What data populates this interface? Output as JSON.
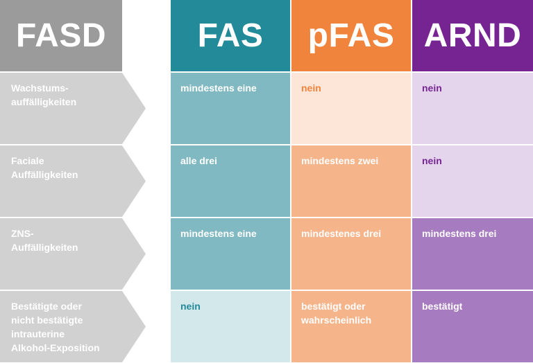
{
  "headers": {
    "fasd": {
      "label": "FASD",
      "color": "#9b9b9b"
    },
    "fas": {
      "label": "FAS",
      "color": "#228a98"
    },
    "pfas": {
      "label": "pFAS",
      "color": "#f0843c"
    },
    "arnd": {
      "label": "ARND",
      "color": "#772493"
    }
  },
  "rows": [
    {
      "label": "Wachstums-\nauffälligkeiten",
      "fas": {
        "text": "mindestens eine",
        "bg": "#80b9c1",
        "color": "#ffffff"
      },
      "pfas": {
        "text": "nein",
        "bg": "#fde5d7",
        "color": "#f0843c"
      },
      "arnd": {
        "text": "nein",
        "bg": "#e4d5ec",
        "color": "#772493"
      }
    },
    {
      "label": "Faciale\nAuffälligkeiten",
      "fas": {
        "text": "alle drei",
        "bg": "#80b9c1",
        "color": "#ffffff"
      },
      "pfas": {
        "text": "mindestens zwei",
        "bg": "#f5b48a",
        "color": "#ffffff"
      },
      "arnd": {
        "text": "nein",
        "bg": "#e4d5ec",
        "color": "#772493"
      }
    },
    {
      "label": "ZNS-\nAuffälligkeiten",
      "fas": {
        "text": "mindestens eine",
        "bg": "#80b9c1",
        "color": "#ffffff"
      },
      "pfas": {
        "text": "mindestenes drei",
        "bg": "#f5b48a",
        "color": "#ffffff"
      },
      "arnd": {
        "text": "mindestens drei",
        "bg": "#a77bbf",
        "color": "#ffffff"
      }
    },
    {
      "label": "Bestätigte oder\nnicht bestätigte\nintrauterine\nAlkohol-Exposition",
      "fas": {
        "text": "nein",
        "bg": "#d3e8eb",
        "color": "#228a98"
      },
      "pfas": {
        "text": "bestätigt oder\nwahrscheinlich",
        "bg": "#f5b48a",
        "color": "#ffffff"
      },
      "arnd": {
        "text": "bestätigt",
        "bg": "#a77bbf",
        "color": "#ffffff"
      }
    }
  ]
}
